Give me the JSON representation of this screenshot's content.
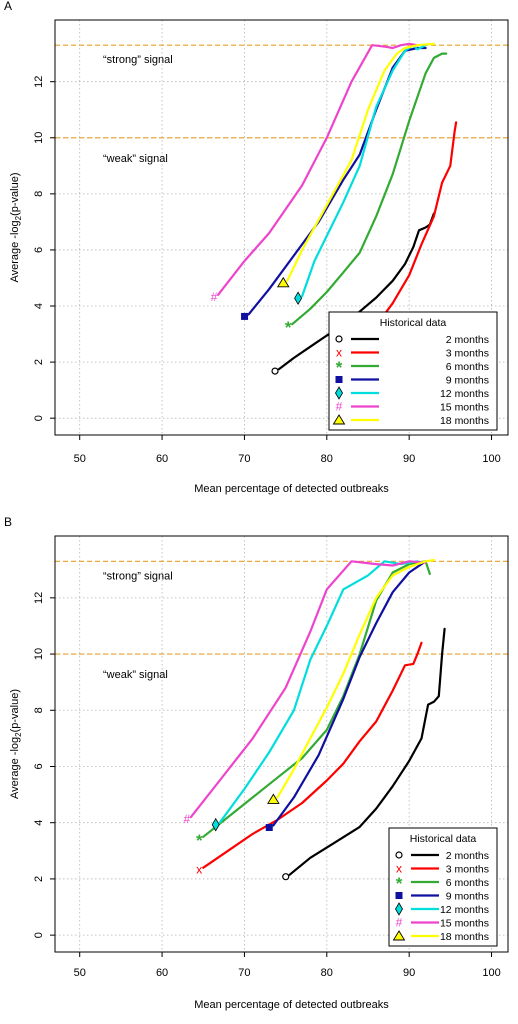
{
  "chart_data": [
    {
      "type": "line",
      "panel": "A",
      "xlabel": "Mean percentage of detected outbreaks",
      "ylabel_prefix": "Average -log",
      "ylabel_sub": "2",
      "ylabel_suffix": "(p-value)",
      "xlim": [
        47,
        102
      ],
      "ylim": [
        -0.6,
        14.2
      ],
      "xticks": [
        50,
        60,
        70,
        80,
        90,
        100
      ],
      "yticks": [
        0,
        2,
        4,
        6,
        8,
        10,
        12
      ],
      "grid": true,
      "thresholds": [
        {
          "y": 13.3,
          "label": "“strong” signal",
          "x": 84
        },
        {
          "y": 10.0,
          "label": "“weak” signal",
          "x": 84
        }
      ],
      "legend": {
        "title": "Historical data",
        "position": "bottom-right"
      },
      "series": [
        {
          "name": "2 months",
          "color": "#000000",
          "marker": "o",
          "points": [
            [
              74.2,
              1.75
            ],
            [
              76,
              2.15
            ],
            [
              78,
              2.55
            ],
            [
              80,
              2.95
            ],
            [
              82,
              3.3
            ],
            [
              84,
              3.8
            ],
            [
              86,
              4.3
            ],
            [
              88,
              4.9
            ],
            [
              89.5,
              5.5
            ],
            [
              90.5,
              6.1
            ],
            [
              91.2,
              6.7
            ],
            [
              92,
              6.8
            ],
            [
              92.5,
              6.9
            ],
            [
              93,
              7.3
            ]
          ]
        },
        {
          "name": "3 months",
          "color": "#ff0000",
          "marker": "x",
          "points": [
            [
              82.6,
              2.25
            ],
            [
              84,
              2.7
            ],
            [
              86,
              3.3
            ],
            [
              88,
              4.1
            ],
            [
              90,
              5.1
            ],
            [
              91.5,
              6.2
            ],
            [
              93,
              7.2
            ],
            [
              94,
              8.4
            ],
            [
              95,
              9.0
            ],
            [
              95.5,
              10.2
            ],
            [
              95.7,
              10.55
            ]
          ]
        },
        {
          "name": "6 months",
          "color": "#33aa33",
          "marker": "*",
          "points": [
            [
              75.8,
              3.35
            ],
            [
              78,
              3.9
            ],
            [
              80,
              4.5
            ],
            [
              82,
              5.2
            ],
            [
              84,
              5.9
            ],
            [
              86,
              7.2
            ],
            [
              88,
              8.7
            ],
            [
              90,
              10.6
            ],
            [
              92,
              12.3
            ],
            [
              93,
              12.85
            ],
            [
              94,
              13.0
            ],
            [
              94.5,
              13.0
            ]
          ]
        },
        {
          "name": "9 months",
          "color": "#1010a0",
          "marker": "square",
          "points": [
            [
              70.5,
              3.7
            ],
            [
              73,
              4.6
            ],
            [
              76,
              5.8
            ],
            [
              79,
              7.0
            ],
            [
              82,
              8.5
            ],
            [
              84,
              9.4
            ],
            [
              86,
              11.0
            ],
            [
              88,
              12.5
            ],
            [
              89.5,
              13.1
            ],
            [
              91,
              13.2
            ],
            [
              92,
              13.2
            ]
          ]
        },
        {
          "name": "12 months",
          "color": "#00dddd",
          "marker": "diamond",
          "points": [
            [
              77,
              4.35
            ],
            [
              78.5,
              5.6
            ],
            [
              80,
              6.5
            ],
            [
              82,
              7.7
            ],
            [
              84,
              9.0
            ],
            [
              86,
              11.1
            ],
            [
              88,
              12.4
            ],
            [
              89.5,
              13.1
            ],
            [
              90.5,
              13.3
            ],
            [
              91,
              13.15
            ],
            [
              92,
              13.3
            ]
          ]
        },
        {
          "name": "15 months",
          "color": "#ee44cc",
          "marker": "#",
          "points": [
            [
              66.8,
              4.4
            ],
            [
              70,
              5.6
            ],
            [
              73,
              6.6
            ],
            [
              77,
              8.3
            ],
            [
              80,
              10.0
            ],
            [
              83,
              12.0
            ],
            [
              85.5,
              13.3
            ],
            [
              87,
              13.25
            ],
            [
              88,
              13.2
            ],
            [
              89,
              13.3
            ],
            [
              90,
              13.35
            ],
            [
              91,
              13.3
            ]
          ]
        },
        {
          "name": "18 months",
          "color": "#ffff00",
          "marker": "triangle",
          "points": [
            [
              75.2,
              4.9
            ],
            [
              77,
              6.0
            ],
            [
              80,
              7.6
            ],
            [
              83,
              9.2
            ],
            [
              85,
              11.0
            ],
            [
              87,
              12.4
            ],
            [
              88.5,
              13.0
            ],
            [
              89.5,
              13.2
            ],
            [
              91,
              13.3
            ],
            [
              93,
              13.35
            ]
          ]
        }
      ]
    },
    {
      "type": "line",
      "panel": "B",
      "xlabel": "Mean percentage of detected outbreaks",
      "ylabel_prefix": "Average -log",
      "ylabel_sub": "2",
      "ylabel_suffix": "(p-value)",
      "xlim": [
        47,
        102
      ],
      "ylim": [
        -0.6,
        14.2
      ],
      "xticks": [
        50,
        60,
        70,
        80,
        90,
        100
      ],
      "yticks": [
        0,
        2,
        4,
        6,
        8,
        10,
        12
      ],
      "grid": true,
      "thresholds": [
        {
          "y": 13.3,
          "label": "“strong” signal",
          "x": 84
        },
        {
          "y": 10.0,
          "label": "“weak” signal",
          "x": 84
        }
      ],
      "legend": {
        "title": "Historical data",
        "position": "bottom-right"
      },
      "series": [
        {
          "name": "2 months",
          "color": "#000000",
          "marker": "o",
          "points": [
            [
              75.5,
              2.15
            ],
            [
              78,
              2.75
            ],
            [
              81,
              3.3
            ],
            [
              84,
              3.85
            ],
            [
              86,
              4.5
            ],
            [
              88,
              5.3
            ],
            [
              90,
              6.2
            ],
            [
              91.5,
              7.0
            ],
            [
              92.3,
              8.2
            ],
            [
              93,
              8.3
            ],
            [
              93.6,
              8.5
            ],
            [
              94,
              10.0
            ],
            [
              94.3,
              10.9
            ]
          ]
        },
        {
          "name": "3 months",
          "color": "#ff0000",
          "marker": "x",
          "points": [
            [
              65,
              2.4
            ],
            [
              68,
              3.0
            ],
            [
              71,
              3.6
            ],
            [
              74,
              4.1
            ],
            [
              77,
              4.7
            ],
            [
              80,
              5.5
            ],
            [
              82,
              6.1
            ],
            [
              84,
              6.9
            ],
            [
              86,
              7.6
            ],
            [
              88,
              8.7
            ],
            [
              89.5,
              9.6
            ],
            [
              90.5,
              9.65
            ],
            [
              91,
              10.0
            ],
            [
              91.5,
              10.4
            ]
          ]
        },
        {
          "name": "6 months",
          "color": "#33aa33",
          "marker": "*",
          "points": [
            [
              65,
              3.5
            ],
            [
              68,
              4.2
            ],
            [
              71,
              4.9
            ],
            [
              74,
              5.6
            ],
            [
              77,
              6.3
            ],
            [
              80,
              7.3
            ],
            [
              82,
              8.5
            ],
            [
              84,
              10.0
            ],
            [
              86,
              11.9
            ],
            [
              88,
              12.9
            ],
            [
              90,
              13.2
            ],
            [
              92,
              13.3
            ],
            [
              92.5,
              12.85
            ]
          ]
        },
        {
          "name": "9 months",
          "color": "#1010a0",
          "marker": "square",
          "points": [
            [
              73.5,
              3.9
            ],
            [
              76,
              4.9
            ],
            [
              79,
              6.4
            ],
            [
              82,
              8.4
            ],
            [
              84,
              9.9
            ],
            [
              86,
              11.1
            ],
            [
              88,
              12.2
            ],
            [
              90,
              12.9
            ],
            [
              92,
              13.3
            ]
          ]
        },
        {
          "name": "12 months",
          "color": "#00dddd",
          "marker": "diamond",
          "points": [
            [
              67,
              4.0
            ],
            [
              70,
              5.2
            ],
            [
              73,
              6.5
            ],
            [
              76,
              8.0
            ],
            [
              78,
              9.8
            ],
            [
              80,
              11.0
            ],
            [
              82,
              12.3
            ],
            [
              85,
              12.8
            ],
            [
              87,
              13.3
            ],
            [
              89,
              13.2
            ],
            [
              91,
              13.3
            ]
          ]
        },
        {
          "name": "15 months",
          "color": "#ee44cc",
          "marker": "#",
          "points": [
            [
              63.5,
              4.2
            ],
            [
              67,
              5.5
            ],
            [
              71,
              7.0
            ],
            [
              75,
              8.8
            ],
            [
              78,
              10.8
            ],
            [
              80,
              12.3
            ],
            [
              83,
              13.3
            ],
            [
              86,
              13.2
            ],
            [
              88,
              13.15
            ],
            [
              90,
              13.3
            ],
            [
              92,
              13.25
            ]
          ]
        },
        {
          "name": "18 months",
          "color": "#ffff00",
          "marker": "triangle",
          "points": [
            [
              74,
              4.9
            ],
            [
              76,
              5.9
            ],
            [
              78,
              7.0
            ],
            [
              80,
              8.1
            ],
            [
              82,
              9.3
            ],
            [
              84,
              10.7
            ],
            [
              86,
              12.0
            ],
            [
              88,
              12.8
            ],
            [
              90,
              13.1
            ],
            [
              92,
              13.3
            ],
            [
              93,
              13.35
            ]
          ]
        }
      ]
    }
  ]
}
